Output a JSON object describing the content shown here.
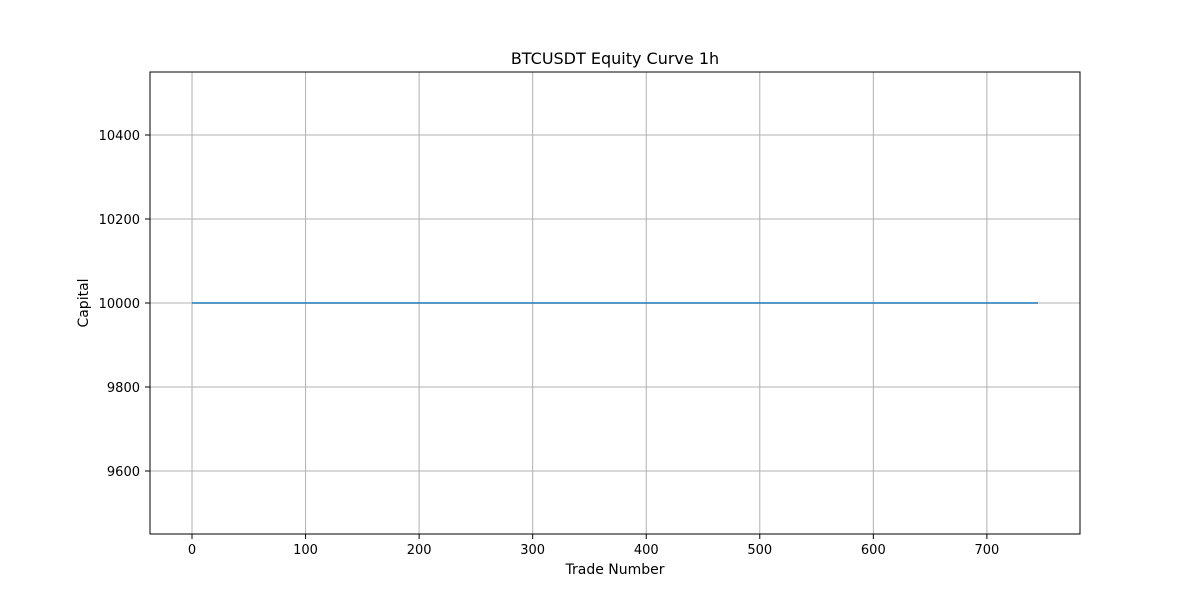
{
  "chart_data": {
    "type": "line",
    "title": "BTCUSDT Equity Curve 1h",
    "xlabel": "Trade Number",
    "ylabel": "Capital",
    "xlim": [
      -37,
      782
    ],
    "ylim": [
      9450,
      10550
    ],
    "xticks": [
      0,
      100,
      200,
      300,
      400,
      500,
      600,
      700
    ],
    "yticks": [
      9600,
      9800,
      10000,
      10200,
      10400
    ],
    "grid": true,
    "series": [
      {
        "color": "#1f77b4",
        "x": [
          0,
          745
        ],
        "y": [
          10000,
          10000
        ]
      }
    ]
  }
}
